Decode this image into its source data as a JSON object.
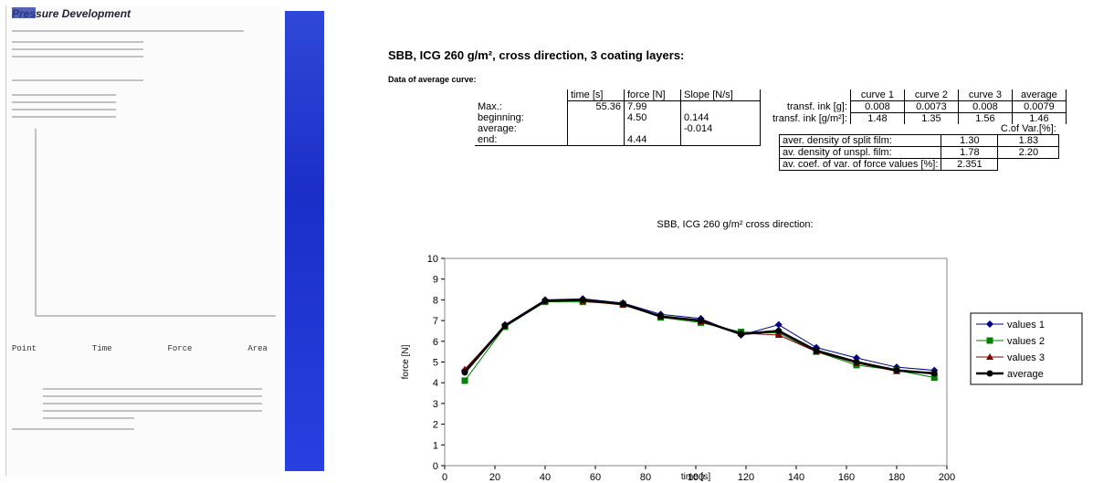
{
  "scan": {
    "title": "Pressure Development",
    "table_headers": [
      "Point",
      "Time",
      "Force",
      "Area"
    ]
  },
  "heading": "SBB, ICG 260 g/m², cross direction, 3 coating layers:",
  "subheading": "Data of average curve:",
  "table1": {
    "headers": [
      null,
      "time [s]",
      "force [N]",
      "Slope [N/s]"
    ],
    "rows": [
      [
        "Max.:",
        "55.36",
        "7.99",
        null
      ],
      [
        "beginning:",
        null,
        "4.50",
        "0.144"
      ],
      [
        "average:",
        null,
        null,
        "-0.014"
      ],
      [
        "end:",
        null,
        "4.44",
        null
      ]
    ]
  },
  "table2": {
    "headers": [
      null,
      "curve 1",
      "curve 2",
      "curve 3",
      "average"
    ],
    "rows": [
      [
        "transf. ink [g]:",
        "0.008",
        "0.0073",
        "0.008",
        "0.0079"
      ],
      [
        "transf. ink [g/m²]:",
        "1.48",
        "1.35",
        "1.56",
        "1.46"
      ]
    ]
  },
  "table3": {
    "headers": [
      null,
      null,
      "C.of Var.[%]:"
    ],
    "rows": [
      [
        "aver. density of split film:",
        "1.30",
        "1.83"
      ],
      [
        "av. density of unspl. film:",
        "1.78",
        "2.20"
      ],
      [
        "av. coef. of var. of force values [%]:",
        "2.351"
      ]
    ]
  },
  "chart_data": {
    "type": "line",
    "title": "SBB, ICG 260 g/m² cross direction:",
    "x_label": "time [s]",
    "y_label": "force [N]",
    "x": [
      8,
      24,
      40,
      55,
      71,
      86,
      102,
      118,
      133,
      148,
      164,
      180,
      195
    ],
    "series": [
      {
        "name": "values 1",
        "color": "#000080",
        "marker": "diamond",
        "values": [
          4.6,
          6.8,
          8.0,
          8.05,
          7.85,
          7.3,
          7.1,
          6.3,
          6.8,
          5.7,
          5.2,
          4.75,
          4.6
        ]
      },
      {
        "name": "values 2",
        "color": "#008000",
        "marker": "square",
        "values": [
          4.1,
          6.7,
          7.9,
          7.9,
          7.8,
          7.15,
          6.9,
          6.45,
          6.4,
          5.5,
          4.85,
          4.6,
          4.25
        ]
      },
      {
        "name": "values 3",
        "color": "#800000",
        "marker": "triangle",
        "values": [
          4.65,
          6.75,
          7.95,
          7.95,
          7.75,
          7.2,
          6.95,
          6.4,
          6.3,
          5.5,
          4.95,
          4.55,
          4.5
        ]
      },
      {
        "name": "average",
        "color": "#000000",
        "marker": "circle",
        "values": [
          4.5,
          6.75,
          7.95,
          8.0,
          7.8,
          7.2,
          7.0,
          6.35,
          6.5,
          5.55,
          5.0,
          4.6,
          4.45
        ]
      }
    ],
    "xlim": [
      0,
      200
    ],
    "xticks": [
      0,
      20,
      40,
      60,
      80,
      100,
      120,
      140,
      160,
      180,
      200
    ],
    "ylim": [
      0,
      10
    ],
    "yticks": [
      0,
      1,
      2,
      3,
      4,
      5,
      6,
      7,
      8,
      9,
      10
    ],
    "legend": "right"
  }
}
